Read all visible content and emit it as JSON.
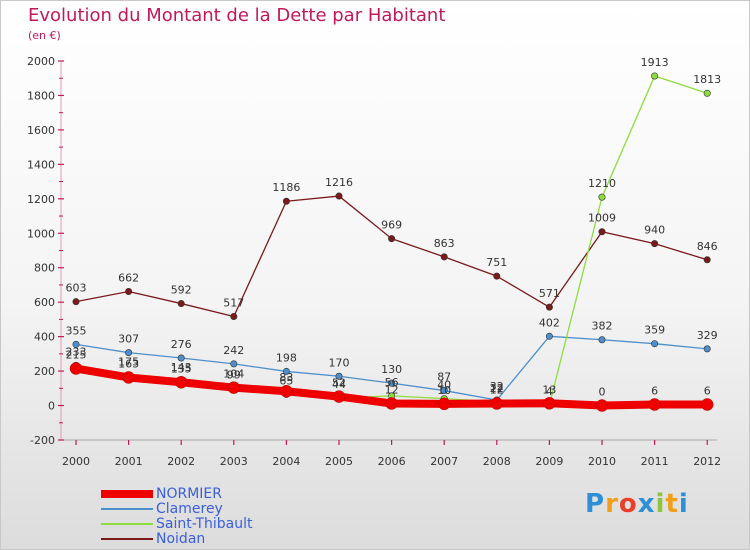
{
  "title": "Evolution du Montant de la Dette par Habitant",
  "subtitle": "(en €)",
  "brand": {
    "text": "Proxiti",
    "letter_colors": [
      "#2e8fd6",
      "#f0a018",
      "#e8402a",
      "#2e8fd6",
      "#8cc63f",
      "#f0a018",
      "#2e8fd6"
    ]
  },
  "chart_data": {
    "type": "line",
    "title": "Evolution du Montant de la Dette par Habitant",
    "subtitle": "(en €)",
    "x": [
      "2000",
      "2001",
      "2002",
      "2003",
      "2004",
      "2005",
      "2006",
      "2007",
      "2008",
      "2009",
      "2010",
      "2011",
      "2012"
    ],
    "ylim": [
      -200,
      2000
    ],
    "yticks": [
      "-200",
      "0",
      "200",
      "400",
      "600",
      "800",
      "1000",
      "1200",
      "1400",
      "1600",
      "1800",
      "2000"
    ],
    "grid": false,
    "legend": "bottom-left",
    "series": [
      {
        "name": "NORMIER",
        "color": "#ee0000",
        "style": "thick",
        "values": [
          215,
          163,
          135,
          104,
          83,
          52,
          12,
          10,
          12,
          13,
          0,
          6,
          6
        ],
        "labels": [
          "215",
          "163",
          "135",
          "104",
          "83",
          "52",
          "12",
          "10",
          "12",
          "13",
          "0",
          "6",
          "6"
        ]
      },
      {
        "name": "Clamerey",
        "color": "#4d8fcc",
        "style": "normal",
        "values": [
          355,
          307,
          276,
          242,
          198,
          170,
          130,
          87,
          32,
          402,
          382,
          359,
          329
        ],
        "labels": [
          "355",
          "307",
          "276",
          "242",
          "198",
          "170",
          "130",
          "87",
          "32",
          "402",
          "382",
          "359",
          "329"
        ]
      },
      {
        "name": "Saint-Thibault",
        "color": "#8cdd3c",
        "style": "normal",
        "values": [
          233,
          175,
          143,
          99,
          65,
          44,
          56,
          40,
          22,
          4,
          1210,
          1913,
          1813
        ],
        "labels": [
          "233",
          "175",
          "143",
          "99",
          "65",
          "44",
          "56",
          "40",
          "22",
          "4",
          "1210",
          "1913",
          "1813"
        ]
      },
      {
        "name": "Noidan",
        "color": "#7a1a1a",
        "style": "normal",
        "values": [
          603,
          662,
          592,
          517,
          1186,
          1216,
          969,
          863,
          751,
          571,
          1009,
          940,
          846
        ],
        "labels": [
          "603",
          "662",
          "592",
          "517",
          "1186",
          "1216",
          "969",
          "863",
          "751",
          "571",
          "1009",
          "940",
          "846"
        ]
      }
    ]
  }
}
